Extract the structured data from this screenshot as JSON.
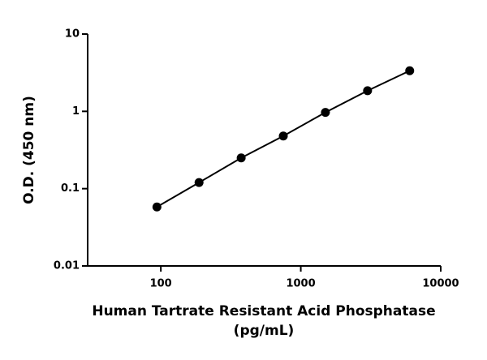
{
  "chart_data": {
    "type": "scatter",
    "xlabel": [
      "Human Tartrate Resistant Acid Phosphatase",
      "(pg/mL)"
    ],
    "ylabel": "O.D. (450 nm)",
    "x": [
      93.75,
      187.5,
      375,
      750,
      1500,
      3000,
      6000
    ],
    "series": [
      {
        "color": "#000000",
        "values": [
          0.058,
          0.12,
          0.25,
          0.48,
          0.97,
          1.85,
          3.35
        ]
      }
    ],
    "xscale": "log",
    "yscale": "log",
    "xlim": [
      30,
      10000
    ],
    "ylim": [
      0.01,
      10
    ],
    "xticks": [
      100,
      1000,
      10000
    ],
    "yticks": [
      0.01,
      0.1,
      1,
      10
    ]
  }
}
